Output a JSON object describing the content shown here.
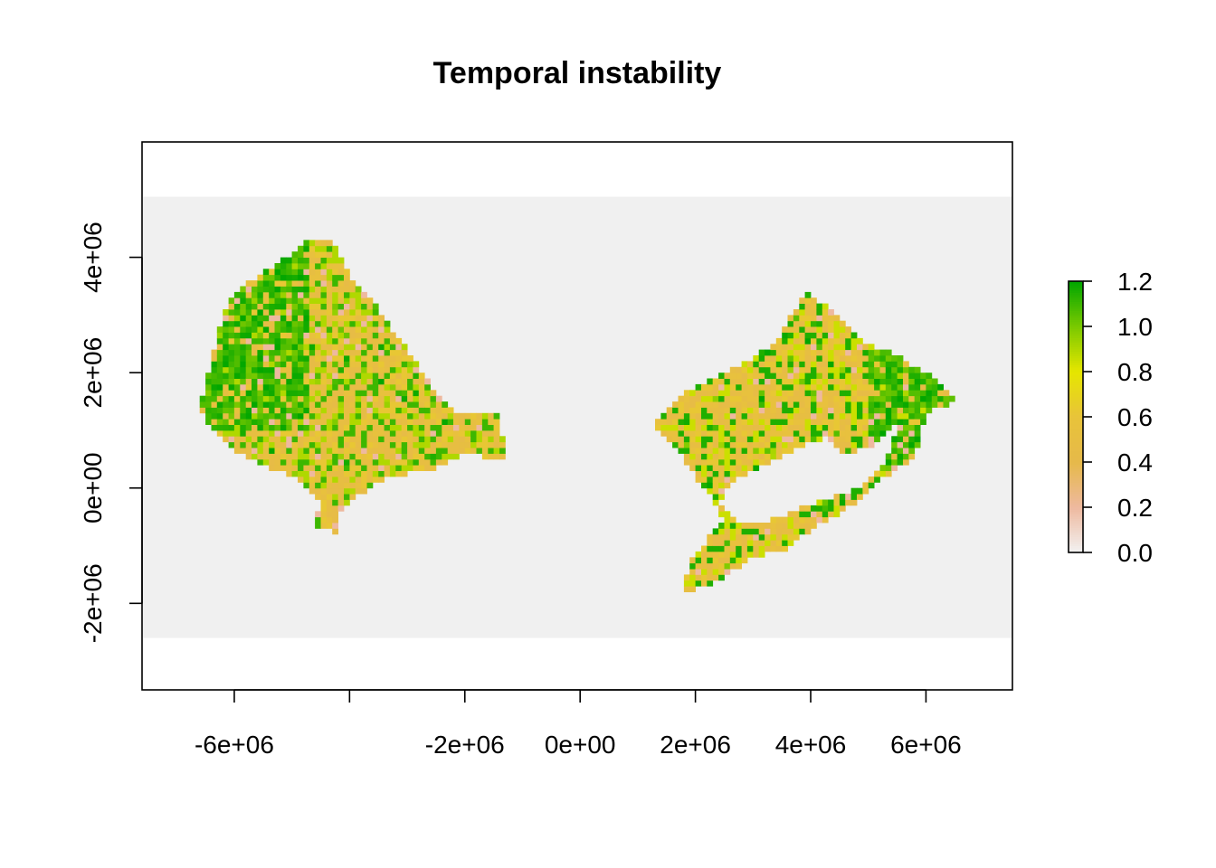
{
  "chart_data": {
    "type": "heatmap",
    "title": "Temporal instability",
    "xlabel": "",
    "ylabel": "",
    "xlim": [
      -7600000,
      7500000
    ],
    "ylim": [
      -3500000,
      6000000
    ],
    "x_ticks": [
      -6000000,
      -4000000,
      -2000000,
      0,
      2000000,
      4000000,
      6000000
    ],
    "x_tick_labels": [
      "-6e+06",
      "",
      "-2e+06",
      "0e+00",
      "2e+06",
      "4e+06",
      "6e+06"
    ],
    "y_ticks": [
      -2000000,
      0,
      2000000,
      4000000
    ],
    "y_tick_labels": [
      "-2e+06",
      "0e+00",
      "2e+06",
      "4e+06"
    ],
    "raster_extent": {
      "ymin": -2600000,
      "ymax": 5050000
    },
    "background_color": "#f0f0f0",
    "legend": {
      "position": "right",
      "range": [
        0,
        1.2
      ],
      "ticks": [
        "0.0",
        "0.2",
        "0.4",
        "0.6",
        "0.8",
        "1.0",
        "1.2"
      ],
      "tick_values": [
        0,
        0.2,
        0.4,
        0.6,
        0.8,
        1.0,
        1.2
      ],
      "colors": [
        "#f2f2f2",
        "#eeb99f",
        "#e6b94a",
        "#e8c33a",
        "#e6e600",
        "#7ac900",
        "#00a600"
      ]
    },
    "regions": [
      {
        "name": "",
        "outline": [
          [
            -6600000,
            1350000
          ],
          [
            -6400000,
            2200000
          ],
          [
            -6100000,
            3300000
          ],
          [
            -5700000,
            3600000
          ],
          [
            -5100000,
            4000000
          ],
          [
            -4700000,
            4300000
          ],
          [
            -4300000,
            4250000
          ],
          [
            -4000000,
            3700000
          ],
          [
            -3500000,
            3100000
          ],
          [
            -3000000,
            2400000
          ],
          [
            -2600000,
            1800000
          ],
          [
            -2200000,
            1300000
          ],
          [
            -1400000,
            1300000
          ],
          [
            -1300000,
            500000
          ],
          [
            -2000000,
            600000
          ],
          [
            -2600000,
            300000
          ],
          [
            -3300000,
            200000
          ],
          [
            -3800000,
            -100000
          ],
          [
            -4200000,
            -400000
          ],
          [
            -4200000,
            -800000
          ],
          [
            -4600000,
            -650000
          ],
          [
            -4500000,
            -200000
          ],
          [
            -4900000,
            200000
          ],
          [
            -5500000,
            400000
          ],
          [
            -6000000,
            650000
          ],
          [
            -6400000,
            1000000
          ]
        ],
        "values": [
          0.45,
          0.5,
          0.55,
          0.62,
          0.9,
          1.1,
          0.35,
          0.2
        ]
      },
      {
        "name": "",
        "outline": [
          [
            1300000,
            1100000
          ],
          [
            1900000,
            1700000
          ],
          [
            2700000,
            2100000
          ],
          [
            3400000,
            2500000
          ],
          [
            3900000,
            3400000
          ],
          [
            4500000,
            3000000
          ],
          [
            5000000,
            2500000
          ],
          [
            5500000,
            2300000
          ],
          [
            6000000,
            2000000
          ],
          [
            6600000,
            1500000
          ],
          [
            6000000,
            1300000
          ],
          [
            5800000,
            500000
          ],
          [
            5300000,
            200000
          ],
          [
            4900000,
            -200000
          ],
          [
            4200000,
            -600000
          ],
          [
            3500000,
            -1100000
          ],
          [
            3000000,
            -1200000
          ],
          [
            2300000,
            -1650000
          ],
          [
            1800000,
            -1800000
          ],
          [
            1900000,
            -1300000
          ],
          [
            2200000,
            -900000
          ],
          [
            2500000,
            -600000
          ],
          [
            2300000,
            -200000
          ],
          [
            2000000,
            200000
          ],
          [
            1700000,
            700000
          ],
          [
            1400000,
            900000
          ]
        ],
        "hole": [
          [
            2400000,
            -300000
          ],
          [
            2600000,
            100000
          ],
          [
            3200000,
            400000
          ],
          [
            3800000,
            700000
          ],
          [
            4300000,
            900000
          ],
          [
            4600000,
            600000
          ],
          [
            5000000,
            700000
          ],
          [
            5500000,
            1100000
          ],
          [
            5300000,
            400000
          ],
          [
            4800000,
            0
          ],
          [
            4300000,
            -200000
          ],
          [
            3700000,
            -400000
          ],
          [
            3200000,
            -600000
          ],
          [
            2700000,
            -550000
          ]
        ],
        "values": [
          0.45,
          0.5,
          0.55,
          0.62,
          0.85,
          1.15,
          0.3,
          0.2
        ]
      }
    ]
  }
}
